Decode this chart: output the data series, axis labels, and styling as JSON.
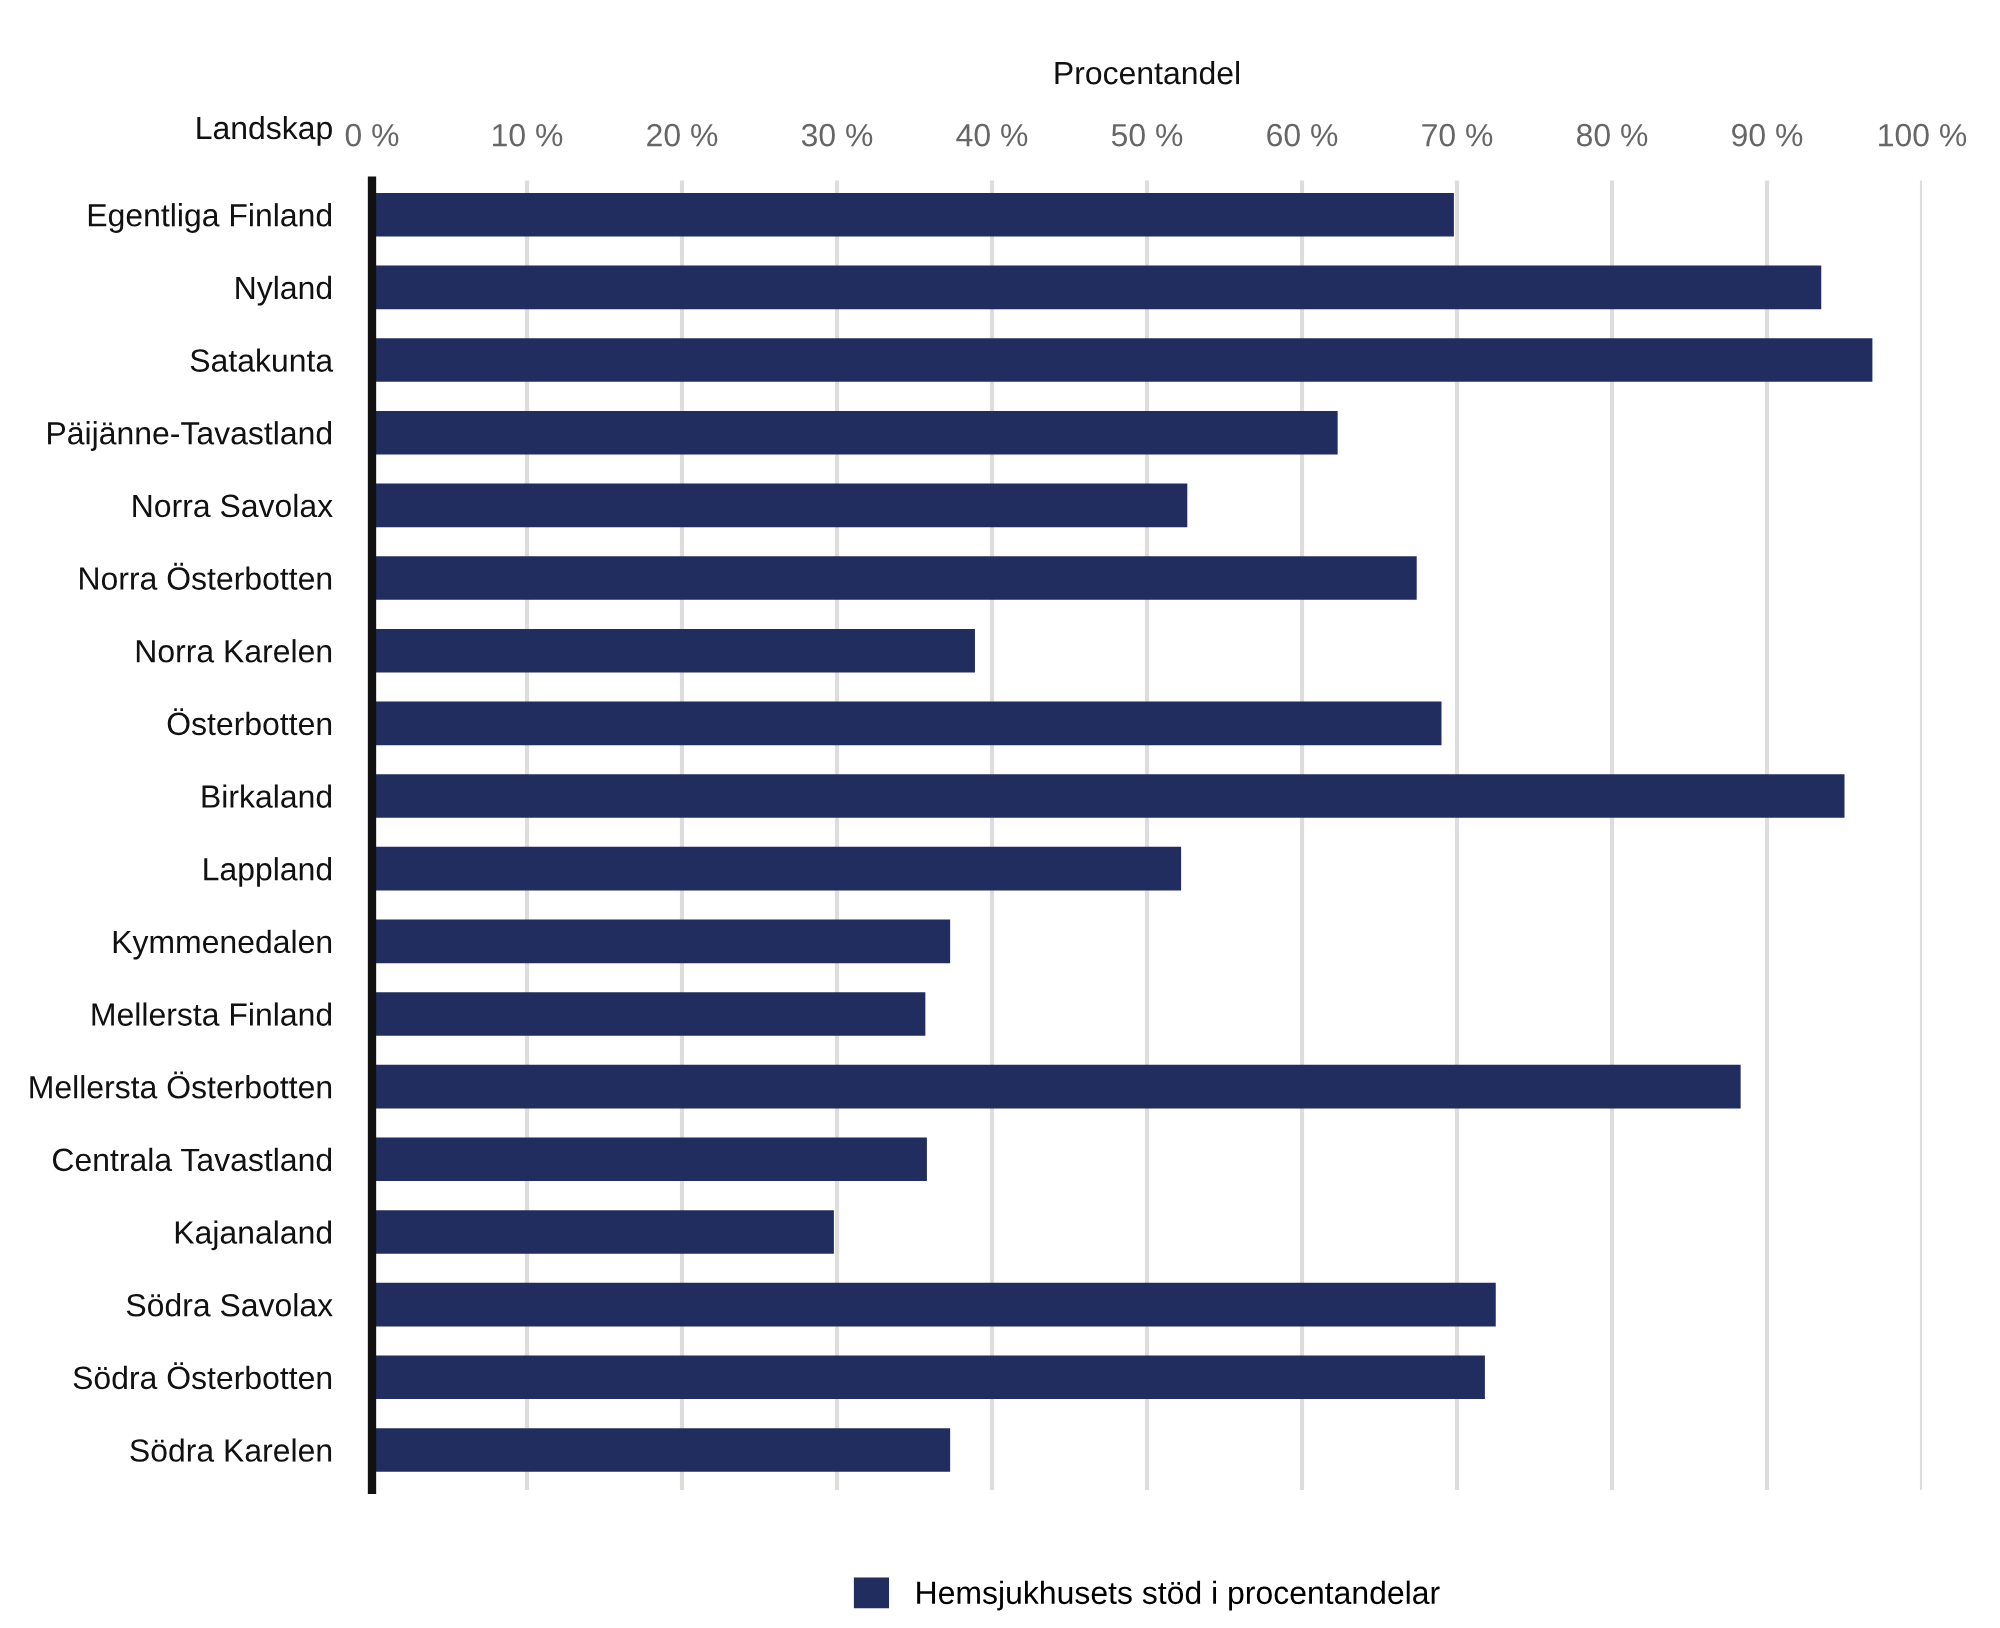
{
  "chart_data": {
    "type": "bar",
    "orientation": "horizontal",
    "xlabel": "Procentandel",
    "ylabel": "Landskap",
    "categories": [
      "Egentliga Finland",
      "Nyland",
      "Satakunta",
      "Päijänne-Tavastland",
      "Norra Savolax",
      "Norra Österbotten",
      "Norra Karelen",
      "Österbotten",
      "Birkaland",
      "Lappland",
      "Kymmenedalen",
      "Mellersta Finland",
      "Mellersta Österbotten",
      "Centrala Tavastland",
      "Kajanaland",
      "Södra Savolax",
      "Södra Österbotten",
      "Södra Karelen"
    ],
    "series": [
      {
        "name": "Hemsjukhusets stöd i procentandelar",
        "color": "#212d5e",
        "values": [
          69.8,
          93.5,
          96.8,
          62.3,
          52.6,
          67.4,
          38.9,
          69.0,
          95.0,
          52.2,
          37.3,
          35.7,
          88.3,
          35.8,
          29.8,
          72.5,
          71.8,
          37.3
        ]
      }
    ],
    "xlim": [
      0,
      100
    ],
    "xticks": [
      {
        "value": 0,
        "label": "0 %"
      },
      {
        "value": 10,
        "label": "10 %"
      },
      {
        "value": 20,
        "label": "20 %"
      },
      {
        "value": 30,
        "label": "30 %"
      },
      {
        "value": 40,
        "label": "40 %"
      },
      {
        "value": 50,
        "label": "50 %"
      },
      {
        "value": 60,
        "label": "60 %"
      },
      {
        "value": 70,
        "label": "70 %"
      },
      {
        "value": 80,
        "label": "80 %"
      },
      {
        "value": 90,
        "label": "90 %"
      },
      {
        "value": 100,
        "label": "100 %"
      }
    ],
    "grid": "x",
    "legend": "bottom"
  }
}
